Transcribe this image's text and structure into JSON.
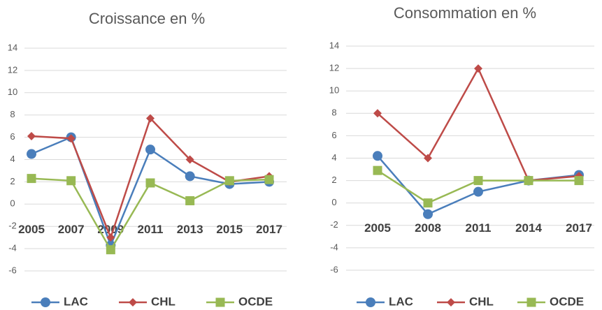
{
  "chart_data": [
    {
      "type": "line",
      "title": "Croissance en %",
      "categories": [
        "2005",
        "2007",
        "2009",
        "2011",
        "2013",
        "2015",
        "2017"
      ],
      "ylim": [
        -6,
        14
      ],
      "yticks": [
        -6,
        -4,
        -2,
        0,
        2,
        4,
        6,
        8,
        10,
        12,
        14
      ],
      "grid": true,
      "legend": "bottom",
      "series": [
        {
          "name": "LAC",
          "color": "#4a7ebb",
          "marker": "circle",
          "values": [
            4.5,
            6.0,
            -3.7,
            4.9,
            2.5,
            1.8,
            2.0
          ]
        },
        {
          "name": "CHL",
          "color": "#be4b48",
          "marker": "diamond",
          "values": [
            6.1,
            5.9,
            -3.0,
            7.7,
            4.0,
            2.0,
            2.5
          ]
        },
        {
          "name": "OCDE",
          "color": "#98b954",
          "marker": "square",
          "values": [
            2.3,
            2.1,
            -4.1,
            1.9,
            0.3,
            2.1,
            2.2
          ]
        }
      ]
    },
    {
      "type": "line",
      "title": "Consommation en %",
      "categories": [
        "2005",
        "2008",
        "2011",
        "2014",
        "2017"
      ],
      "ylim": [
        -6,
        14
      ],
      "yticks": [
        -6,
        -4,
        -2,
        0,
        2,
        4,
        6,
        8,
        10,
        12,
        14
      ],
      "grid": true,
      "legend": "bottom",
      "series": [
        {
          "name": "LAC",
          "color": "#4a7ebb",
          "marker": "circle",
          "values": [
            4.2,
            -1.0,
            1.0,
            2.0,
            2.5
          ]
        },
        {
          "name": "CHL",
          "color": "#be4b48",
          "marker": "diamond",
          "values": [
            8.0,
            4.0,
            12.0,
            2.0,
            2.4
          ]
        },
        {
          "name": "OCDE",
          "color": "#98b954",
          "marker": "square",
          "values": [
            2.9,
            0.0,
            2.0,
            2.0,
            2.0
          ]
        }
      ]
    }
  ]
}
